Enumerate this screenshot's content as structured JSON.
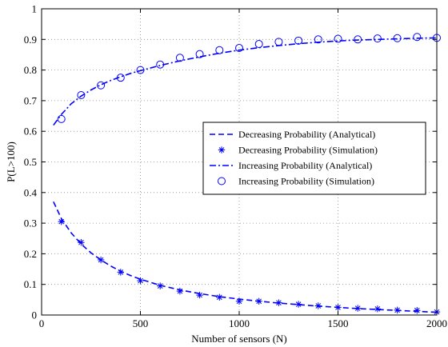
{
  "chart_data": {
    "type": "line",
    "title": "",
    "xlabel": "Number of sensors (N)",
    "ylabel": "P(L>100)",
    "xlim": [
      0,
      2000
    ],
    "ylim": [
      0,
      1
    ],
    "xticks": [
      0,
      500,
      1000,
      1500,
      2000
    ],
    "yticks": [
      0,
      0.1,
      0.2,
      0.3,
      0.4,
      0.5,
      0.6,
      0.7,
      0.8,
      0.9,
      1
    ],
    "xtick_labels": [
      "0",
      "500",
      "1000",
      "1500",
      "2000"
    ],
    "ytick_labels": [
      "0",
      "0.1",
      "0.2",
      "0.3",
      "0.4",
      "0.5",
      "0.6",
      "0.7",
      "0.8",
      "0.9",
      "1"
    ],
    "grid": true,
    "legend_position": "center-right",
    "series": [
      {
        "name": "Decreasing Probability (Analytical)",
        "style": "dashed",
        "marker": "none",
        "color": "#0000ff",
        "x": [
          60,
          100,
          150,
          200,
          250,
          300,
          350,
          400,
          450,
          500,
          600,
          700,
          800,
          900,
          1000,
          1100,
          1200,
          1300,
          1400,
          1500,
          1600,
          1700,
          1800,
          1900,
          2000
        ],
        "y": [
          0.37,
          0.315,
          0.268,
          0.232,
          0.203,
          0.18,
          0.16,
          0.143,
          0.129,
          0.117,
          0.097,
          0.082,
          0.07,
          0.06,
          0.052,
          0.045,
          0.039,
          0.034,
          0.029,
          0.025,
          0.021,
          0.018,
          0.015,
          0.012,
          0.009
        ]
      },
      {
        "name": "Decreasing Probability (Simulation)",
        "style": "none",
        "marker": "asterisk",
        "color": "#0000ff",
        "x": [
          100,
          200,
          300,
          400,
          500,
          600,
          700,
          800,
          900,
          1000,
          1100,
          1200,
          1300,
          1400,
          1500,
          1600,
          1700,
          1800,
          1900,
          2000
        ],
        "y": [
          0.305,
          0.237,
          0.18,
          0.14,
          0.112,
          0.095,
          0.078,
          0.065,
          0.058,
          0.045,
          0.045,
          0.04,
          0.035,
          0.03,
          0.025,
          0.022,
          0.02,
          0.016,
          0.015,
          0.01
        ]
      },
      {
        "name": "Increasing Probability (Analytical)",
        "style": "dashdot",
        "marker": "none",
        "color": "#0000ff",
        "x": [
          60,
          100,
          150,
          200,
          250,
          300,
          350,
          400,
          450,
          500,
          600,
          700,
          800,
          900,
          1000,
          1100,
          1200,
          1300,
          1400,
          1500,
          1600,
          1700,
          1800,
          1900,
          2000
        ],
        "y": [
          0.62,
          0.655,
          0.69,
          0.715,
          0.735,
          0.752,
          0.766,
          0.778,
          0.789,
          0.798,
          0.815,
          0.83,
          0.843,
          0.855,
          0.865,
          0.873,
          0.88,
          0.886,
          0.891,
          0.895,
          0.898,
          0.9,
          0.902,
          0.904,
          0.905
        ]
      },
      {
        "name": "Increasing Probability (Simulation)",
        "style": "none",
        "marker": "circle",
        "color": "#0000ff",
        "x": [
          100,
          200,
          300,
          400,
          500,
          600,
          700,
          800,
          900,
          1000,
          1100,
          1200,
          1300,
          1400,
          1500,
          1600,
          1700,
          1800,
          1900,
          2000
        ],
        "y": [
          0.64,
          0.718,
          0.75,
          0.775,
          0.8,
          0.818,
          0.84,
          0.852,
          0.865,
          0.872,
          0.885,
          0.892,
          0.896,
          0.9,
          0.902,
          0.9,
          0.903,
          0.904,
          0.908,
          0.905
        ]
      }
    ]
  }
}
